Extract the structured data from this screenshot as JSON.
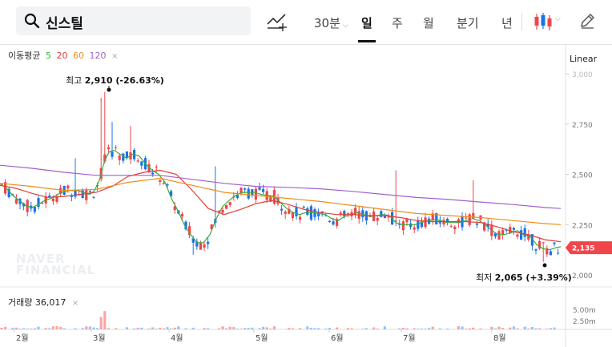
{
  "search": {
    "query": "신스틸"
  },
  "periods": [
    {
      "label": "30분",
      "has_caret": true,
      "active": false
    },
    {
      "label": "일",
      "active": true
    },
    {
      "label": "주",
      "active": false
    },
    {
      "label": "월",
      "active": false
    },
    {
      "label": "분기",
      "active": false
    },
    {
      "label": "년",
      "active": false
    }
  ],
  "ma_legend": {
    "label": "이동평균",
    "items": [
      {
        "period": "5",
        "color": "#3dab3d"
      },
      {
        "period": "20",
        "color": "#e23d3d"
      },
      {
        "period": "60",
        "color": "#f08c1e"
      },
      {
        "period": "120",
        "color": "#a35fd0"
      }
    ],
    "close": "×"
  },
  "scale_type": "Linear",
  "watermark": {
    "line1": "NAVER",
    "line2": "FINANCIAL"
  },
  "volume_legend": {
    "label": "거래량",
    "value": "36,017",
    "close": "×"
  },
  "colors": {
    "up": "#f0454b",
    "down": "#1a73e8",
    "current_price_badge": "#f0454b"
  },
  "chart_data": {
    "type": "candlestick",
    "y_axis_ticks": [
      "3,000",
      "2,750",
      "2,500",
      "2,250",
      "2,000"
    ],
    "ylim": [
      1985,
      3010
    ],
    "x_axis_labels": [
      "2월",
      "3월",
      "4월",
      "5월",
      "6월",
      "7월",
      "8월"
    ],
    "current_price": "2,135",
    "annotations": {
      "high": {
        "label": "최고",
        "value": "2,910 (-26.63%)"
      },
      "low": {
        "label": "최저",
        "value": "2,065 (+3.39%)"
      }
    },
    "volume_axis_ticks": [
      "5.00m",
      "2.50m"
    ],
    "ma_lines": [
      {
        "name": "5",
        "color": "#3dab3d",
        "points": [
          [
            0,
            2455
          ],
          [
            8,
            2430
          ],
          [
            16,
            2395
          ],
          [
            24,
            2370
          ],
          [
            32,
            2345
          ],
          [
            40,
            2335
          ],
          [
            48,
            2350
          ],
          [
            56,
            2370
          ],
          [
            64,
            2380
          ],
          [
            72,
            2400
          ],
          [
            80,
            2415
          ],
          [
            88,
            2420
          ],
          [
            96,
            2420
          ],
          [
            104,
            2410
          ],
          [
            112,
            2400
          ],
          [
            118,
            2420
          ],
          [
            124,
            2470
          ],
          [
            130,
            2560
          ],
          [
            136,
            2610
          ],
          [
            142,
            2620
          ],
          [
            150,
            2600
          ],
          [
            158,
            2580
          ],
          [
            166,
            2600
          ],
          [
            174,
            2590
          ],
          [
            182,
            2550
          ],
          [
            190,
            2520
          ],
          [
            198,
            2500
          ],
          [
            206,
            2460
          ],
          [
            214,
            2380
          ],
          [
            222,
            2320
          ],
          [
            230,
            2250
          ],
          [
            238,
            2200
          ],
          [
            246,
            2160
          ],
          [
            254,
            2160
          ],
          [
            262,
            2200
          ],
          [
            270,
            2280
          ],
          [
            278,
            2340
          ],
          [
            286,
            2370
          ],
          [
            294,
            2395
          ],
          [
            302,
            2410
          ],
          [
            310,
            2410
          ],
          [
            318,
            2410
          ],
          [
            326,
            2400
          ],
          [
            334,
            2395
          ],
          [
            342,
            2390
          ],
          [
            350,
            2360
          ],
          [
            358,
            2330
          ],
          [
            366,
            2310
          ],
          [
            374,
            2300
          ],
          [
            382,
            2310
          ],
          [
            390,
            2310
          ],
          [
            398,
            2305
          ],
          [
            406,
            2300
          ],
          [
            414,
            2280
          ],
          [
            422,
            2270
          ],
          [
            430,
            2290
          ],
          [
            438,
            2300
          ],
          [
            446,
            2310
          ],
          [
            454,
            2300
          ],
          [
            462,
            2290
          ],
          [
            470,
            2295
          ],
          [
            478,
            2300
          ],
          [
            486,
            2295
          ],
          [
            494,
            2260
          ],
          [
            502,
            2250
          ],
          [
            510,
            2250
          ],
          [
            518,
            2250
          ],
          [
            526,
            2260
          ],
          [
            534,
            2270
          ],
          [
            542,
            2275
          ],
          [
            550,
            2270
          ],
          [
            558,
            2260
          ],
          [
            566,
            2260
          ],
          [
            574,
            2260
          ],
          [
            582,
            2270
          ],
          [
            590,
            2280
          ],
          [
            598,
            2270
          ],
          [
            606,
            2250
          ],
          [
            614,
            2220
          ],
          [
            622,
            2200
          ],
          [
            630,
            2200
          ],
          [
            638,
            2210
          ],
          [
            646,
            2220
          ],
          [
            654,
            2200
          ],
          [
            662,
            2190
          ],
          [
            670,
            2150
          ],
          [
            678,
            2130
          ],
          [
            686,
            2125
          ],
          [
            694,
            2135
          ],
          [
            700,
            2140
          ]
        ]
      },
      {
        "name": "20",
        "color": "#e23d3d",
        "points": [
          [
            0,
            2445
          ],
          [
            20,
            2430
          ],
          [
            40,
            2405
          ],
          [
            60,
            2385
          ],
          [
            80,
            2390
          ],
          [
            100,
            2400
          ],
          [
            120,
            2410
          ],
          [
            140,
            2440
          ],
          [
            160,
            2490
          ],
          [
            180,
            2510
          ],
          [
            200,
            2520
          ],
          [
            220,
            2500
          ],
          [
            240,
            2420
          ],
          [
            260,
            2330
          ],
          [
            280,
            2300
          ],
          [
            300,
            2325
          ],
          [
            320,
            2355
          ],
          [
            340,
            2370
          ],
          [
            360,
            2350
          ],
          [
            380,
            2325
          ],
          [
            400,
            2310
          ],
          [
            420,
            2300
          ],
          [
            440,
            2300
          ],
          [
            460,
            2295
          ],
          [
            480,
            2295
          ],
          [
            500,
            2285
          ],
          [
            520,
            2270
          ],
          [
            540,
            2265
          ],
          [
            560,
            2265
          ],
          [
            580,
            2265
          ],
          [
            600,
            2260
          ],
          [
            620,
            2240
          ],
          [
            640,
            2215
          ],
          [
            660,
            2200
          ],
          [
            680,
            2175
          ],
          [
            700,
            2165
          ]
        ]
      },
      {
        "name": "60",
        "color": "#f08c1e",
        "points": [
          [
            0,
            2455
          ],
          [
            40,
            2440
          ],
          [
            80,
            2420
          ],
          [
            120,
            2425
          ],
          [
            160,
            2460
          ],
          [
            200,
            2480
          ],
          [
            240,
            2445
          ],
          [
            280,
            2410
          ],
          [
            320,
            2395
          ],
          [
            360,
            2380
          ],
          [
            400,
            2365
          ],
          [
            440,
            2345
          ],
          [
            480,
            2325
          ],
          [
            520,
            2305
          ],
          [
            560,
            2295
          ],
          [
            600,
            2285
          ],
          [
            640,
            2270
          ],
          [
            680,
            2255
          ],
          [
            700,
            2250
          ]
        ]
      },
      {
        "name": "120",
        "color": "#a35fd0",
        "points": [
          [
            0,
            2545
          ],
          [
            40,
            2530
          ],
          [
            80,
            2510
          ],
          [
            120,
            2495
          ],
          [
            160,
            2495
          ],
          [
            200,
            2495
          ],
          [
            240,
            2475
          ],
          [
            280,
            2455
          ],
          [
            320,
            2440
          ],
          [
            360,
            2435
          ],
          [
            400,
            2428
          ],
          [
            440,
            2415
          ],
          [
            480,
            2400
          ],
          [
            520,
            2385
          ],
          [
            560,
            2375
          ],
          [
            600,
            2362
          ],
          [
            640,
            2350
          ],
          [
            680,
            2335
          ],
          [
            700,
            2330
          ]
        ]
      }
    ]
  }
}
